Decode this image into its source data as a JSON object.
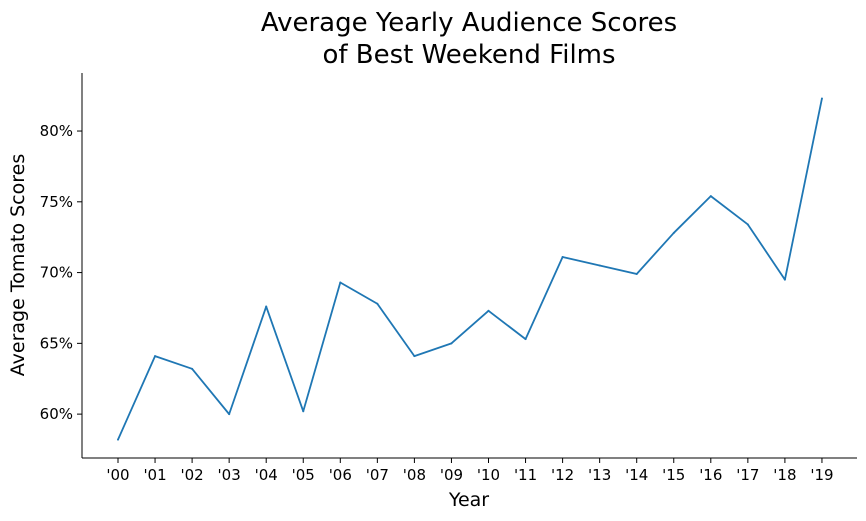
{
  "chart_data": {
    "type": "line",
    "title_line1": "Average Yearly Audience Scores",
    "title_line2": "of Best Weekend Films",
    "xlabel": "Year",
    "ylabel": "Average Tomato Scores",
    "categories": [
      "'00",
      "'01",
      "'02",
      "'03",
      "'04",
      "'05",
      "'06",
      "'07",
      "'08",
      "'09",
      "'10",
      "'11",
      "'12",
      "'13",
      "'14",
      "'15",
      "'16",
      "'17",
      "'18",
      "'19"
    ],
    "series": [
      {
        "values": [
          58.2,
          64.1,
          63.2,
          60.0,
          67.6,
          60.2,
          69.3,
          67.8,
          64.1,
          65.0,
          67.3,
          65.3,
          71.1,
          70.5,
          69.9,
          72.8,
          75.4,
          73.4,
          69.5,
          82.3
        ],
        "color": "#1f77b4"
      }
    ],
    "ylim": [
      56.9,
      84.1
    ],
    "yticks": [
      60,
      65,
      70,
      75,
      80
    ],
    "ytick_labels": [
      "60%",
      "65%",
      "70%",
      "75%",
      "80%"
    ],
    "grid": false,
    "spines": [
      "left",
      "bottom"
    ]
  }
}
